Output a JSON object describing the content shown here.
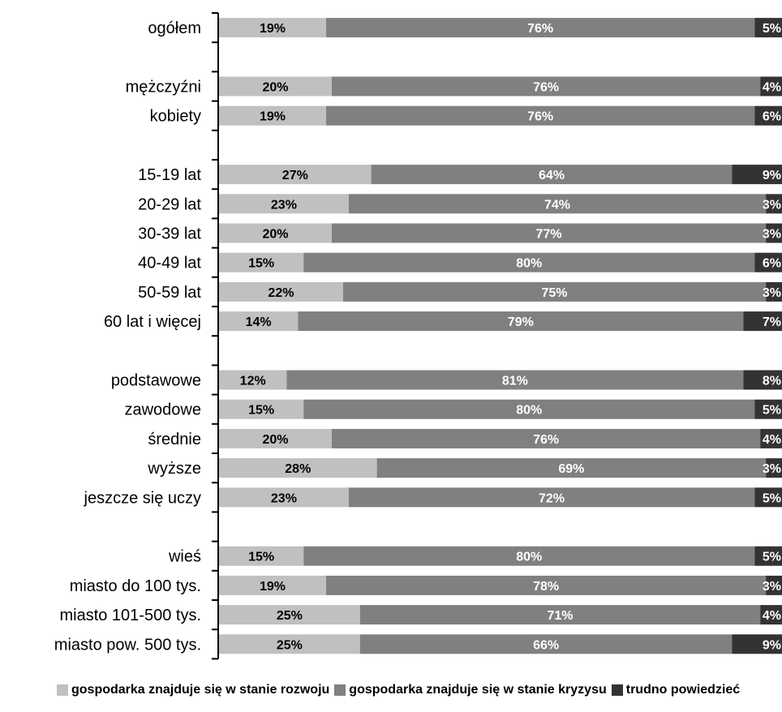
{
  "chart_data": {
    "type": "bar",
    "orientation": "horizontal",
    "stacked": true,
    "percent": true,
    "categories": [
      "ogółem",
      "",
      "mężczyźni",
      "kobiety",
      "",
      "15-19 lat",
      "20-29 lat",
      "30-39 lat",
      "40-49 lat",
      "50-59 lat",
      "60 lat i więcej",
      "",
      "podstawowe",
      "zawodowe",
      "średnie",
      "wyższe",
      "jeszcze się uczy",
      "",
      "wieś",
      "miasto do 100 tys.",
      "miasto 101-500 tys.",
      "miasto pow. 500 tys."
    ],
    "series": [
      {
        "name": "gospodarka znajduje się w stanie rozwoju",
        "color": "#c0c0c0",
        "label_color": "#000000",
        "values": [
          19,
          null,
          20,
          19,
          null,
          27,
          23,
          20,
          15,
          22,
          14,
          null,
          12,
          15,
          20,
          28,
          23,
          null,
          15,
          19,
          25,
          25
        ]
      },
      {
        "name": "gospodarka znajduje się w stanie kryzysu",
        "color": "#808080",
        "label_color": "#ffffff",
        "values": [
          76,
          null,
          76,
          76,
          null,
          64,
          74,
          77,
          80,
          75,
          79,
          null,
          81,
          80,
          76,
          69,
          72,
          null,
          80,
          78,
          71,
          66
        ]
      },
      {
        "name": "trudno powiedzieć",
        "color": "#333333",
        "label_color": "#ffffff",
        "values": [
          5,
          null,
          4,
          6,
          null,
          9,
          3,
          3,
          6,
          3,
          7,
          null,
          8,
          5,
          4,
          3,
          5,
          null,
          5,
          3,
          4,
          9
        ]
      }
    ],
    "value_suffix": "%",
    "xlim": [
      0,
      100
    ],
    "legend_position": "bottom",
    "grid": false
  }
}
